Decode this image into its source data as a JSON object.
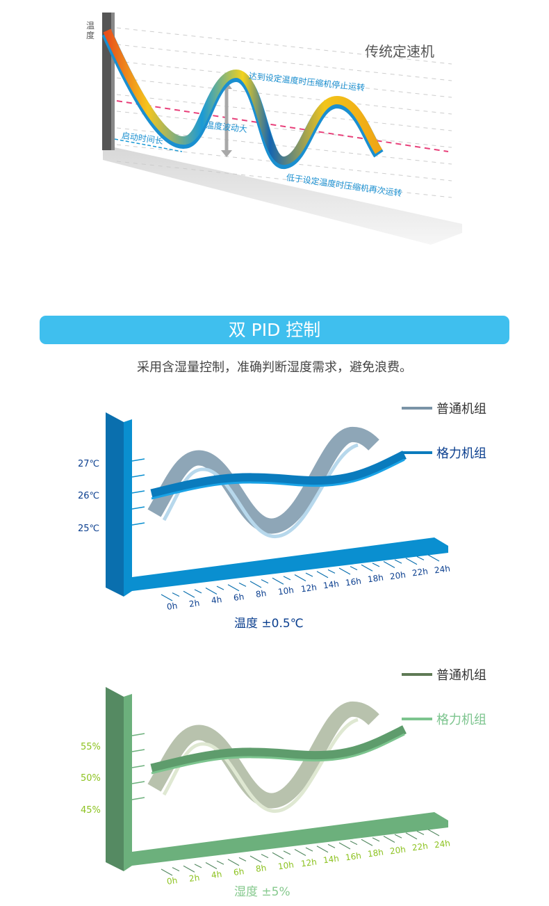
{
  "section1": {
    "y_axis_label": "温度",
    "title": "传统定速机",
    "annotation_peak": "达到设定温度时压缩机停止运转",
    "annotation_fluct": "温度波动大",
    "annotation_start": "启动时间长",
    "annotation_low": "低于设定温度时压缩机再次运转"
  },
  "banner": {
    "title": "双 PID 控制"
  },
  "subtitle": "采用含湿量控制，准确判断湿度需求，避免浪费。",
  "chart_temp": {
    "legend": [
      {
        "label": "普通机组",
        "color": "#7a93a6"
      },
      {
        "label": "格力机组",
        "color": "#0a7bbd"
      }
    ],
    "y_ticks": [
      "27℃",
      "26℃",
      "25℃"
    ],
    "x_ticks": [
      "0h",
      "2h",
      "4h",
      "6h",
      "8h",
      "10h",
      "12h",
      "14h",
      "16h",
      "18h",
      "20h",
      "22h",
      "24h"
    ],
    "caption": "温度 ±0.5℃",
    "axis_color": "#0a7bbd",
    "label_color": "#0b3f8f"
  },
  "chart_hum": {
    "legend": [
      {
        "label": "普通机组",
        "color": "#5f7a55"
      },
      {
        "label": "格力机组",
        "color": "#7cc48e"
      }
    ],
    "y_ticks": [
      "55%",
      "50%",
      "45%"
    ],
    "x_ticks": [
      "0h",
      "2h",
      "4h",
      "6h",
      "8h",
      "10h",
      "12h",
      "14h",
      "16h",
      "18h",
      "20h",
      "22h",
      "24h"
    ],
    "caption": "湿度 ±5%",
    "axis_color": "#5f9e6f",
    "label_color": "#8cc21f"
  }
}
